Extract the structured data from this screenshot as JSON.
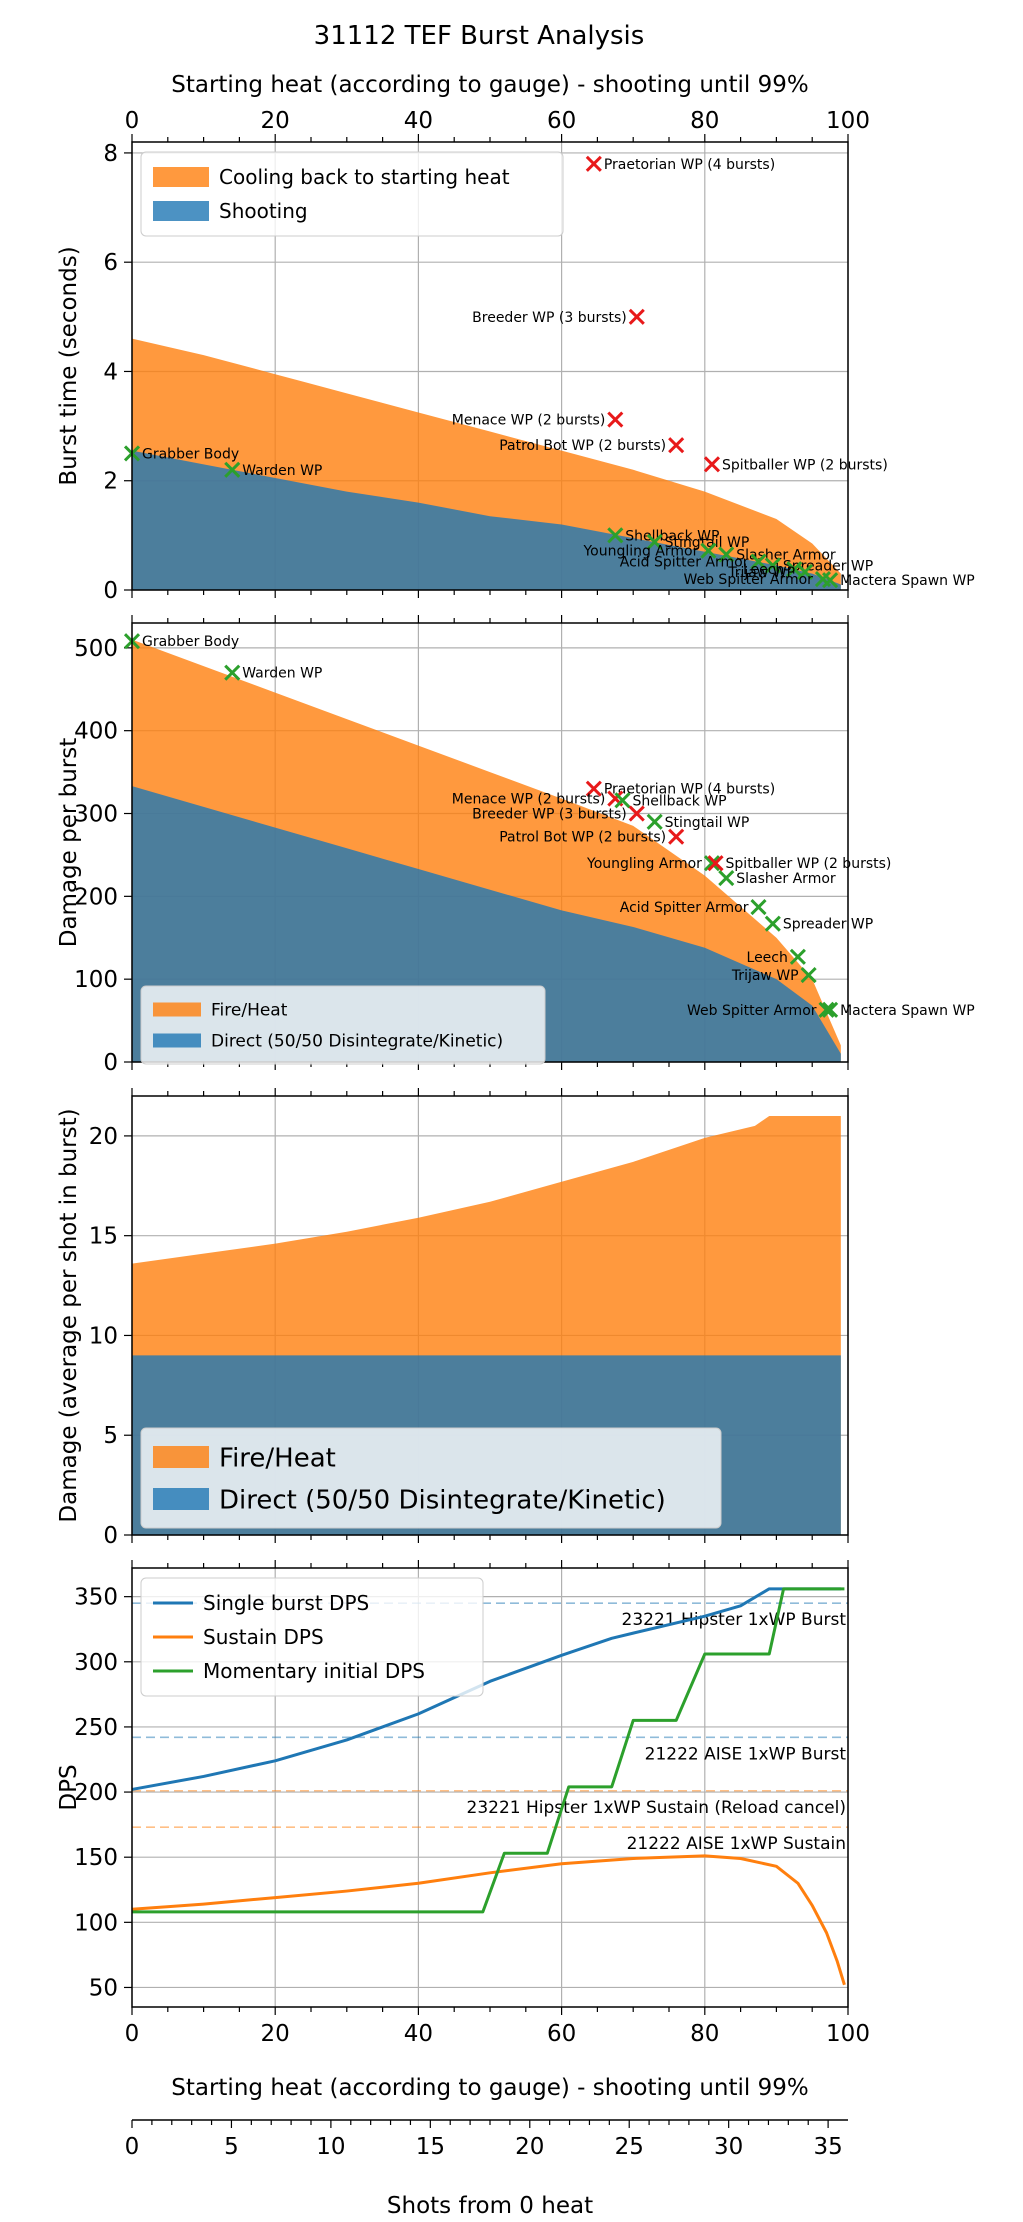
{
  "title": "31112 TEF Burst Analysis",
  "top_axis": {
    "label": "Starting heat (according to gauge) - shooting until 99%",
    "ticks": [
      0,
      20,
      40,
      60,
      80,
      100
    ]
  },
  "bottom_axis": {
    "label": "Starting heat (according to gauge) - shooting until 99%",
    "ticks": [
      0,
      20,
      40,
      60,
      80,
      100
    ]
  },
  "shots_axis": {
    "label": "Shots from 0 heat",
    "ticks": [
      0,
      5,
      10,
      15,
      20,
      25,
      30,
      35
    ],
    "max_shots": 36
  },
  "colors": {
    "orange": "#ff7f0e",
    "blue": "#1f77b4",
    "green": "#2ca02c",
    "red": "#e8191a"
  },
  "chart_data": [
    {
      "type": "area",
      "ylabel": "Burst time (seconds)",
      "xlim": [
        0,
        100
      ],
      "ylim": [
        0,
        8.2
      ],
      "yticks": [
        0,
        2,
        4,
        6,
        8
      ],
      "grid": true,
      "legend_position": "top-left",
      "x": [
        0,
        10,
        20,
        30,
        40,
        50,
        60,
        70,
        80,
        90,
        95,
        99
      ],
      "series": [
        {
          "name": "Cooling back to starting heat",
          "color": "#ff7f0e",
          "values": [
            4.6,
            4.3,
            3.95,
            3.6,
            3.25,
            2.9,
            2.55,
            2.2,
            1.8,
            1.3,
            0.85,
            0.3
          ]
        },
        {
          "name": "Shooting",
          "color": "#1f77b4",
          "values": [
            2.55,
            2.3,
            2.05,
            1.8,
            1.6,
            1.35,
            1.2,
            0.95,
            0.7,
            0.45,
            0.3,
            0.1
          ]
        }
      ],
      "markers": [
        {
          "label": "Praetorian WP (4 bursts)",
          "x": 64.5,
          "y": 7.8,
          "marker": "red",
          "side": "right"
        },
        {
          "label": "Breeder WP (3 bursts)",
          "x": 70.5,
          "y": 5.0,
          "marker": "red",
          "side": "left"
        },
        {
          "label": "Menace WP (2 bursts)",
          "x": 67.5,
          "y": 3.12,
          "marker": "red",
          "side": "left"
        },
        {
          "label": "Patrol Bot WP (2 bursts)",
          "x": 76,
          "y": 2.65,
          "marker": "red",
          "side": "left"
        },
        {
          "label": "Spitballer WP (2 bursts)",
          "x": 81,
          "y": 2.3,
          "marker": "red",
          "side": "right"
        },
        {
          "label": "Grabber Body",
          "x": 0,
          "y": 2.5,
          "marker": "green",
          "side": "right"
        },
        {
          "label": "Warden WP",
          "x": 14,
          "y": 2.2,
          "marker": "green",
          "side": "right"
        },
        {
          "label": "Shellback WP",
          "x": 67.5,
          "y": 1.0,
          "marker": "green",
          "side": "right"
        },
        {
          "label": "Stingtail WP",
          "x": 73,
          "y": 0.88,
          "marker": "green",
          "side": "right"
        },
        {
          "label": "Youngling Armor",
          "x": 80.5,
          "y": 0.72,
          "marker": "green",
          "side": "left"
        },
        {
          "label": "Slasher Armor",
          "x": 83,
          "y": 0.65,
          "marker": "green",
          "side": "right"
        },
        {
          "label": "Acid Spitter Armor",
          "x": 87.5,
          "y": 0.52,
          "marker": "green",
          "side": "left"
        },
        {
          "label": "Spreader WP",
          "x": 89.5,
          "y": 0.45,
          "marker": "green",
          "side": "right"
        },
        {
          "label": "Leech",
          "x": 92.5,
          "y": 0.38,
          "marker": "green",
          "side": "left"
        },
        {
          "label": "Trijaw WP",
          "x": 94,
          "y": 0.33,
          "marker": "green",
          "side": "left"
        },
        {
          "label": "Web Spitter Armor",
          "x": 96.5,
          "y": 0.2,
          "marker": "green",
          "side": "left"
        },
        {
          "label": "Mactera Spawn WP",
          "x": 97.5,
          "y": 0.18,
          "marker": "green",
          "side": "right"
        }
      ]
    },
    {
      "type": "area",
      "ylabel": "Damage per burst",
      "xlim": [
        0,
        100
      ],
      "ylim": [
        0,
        530
      ],
      "yticks": [
        0,
        100,
        200,
        300,
        400,
        500
      ],
      "grid": true,
      "legend_position": "bottom-left",
      "x": [
        0,
        10,
        20,
        30,
        40,
        50,
        60,
        70,
        80,
        90,
        95,
        99
      ],
      "series": [
        {
          "name": "Fire/Heat",
          "color": "#ff7f0e",
          "values": [
            510,
            478,
            446,
            414,
            382,
            350,
            318,
            285,
            225,
            150,
            100,
            20
          ]
        },
        {
          "name": "Direct (50/50 Disintegrate/Kinetic)",
          "color": "#1f77b4",
          "values": [
            333,
            308,
            283,
            258,
            233,
            208,
            183,
            163,
            138,
            100,
            68,
            10
          ]
        }
      ],
      "markers": [
        {
          "label": "Grabber Body",
          "x": 0,
          "y": 508,
          "marker": "green",
          "side": "right"
        },
        {
          "label": "Warden WP",
          "x": 14,
          "y": 470,
          "marker": "green",
          "side": "right"
        },
        {
          "label": "Praetorian WP (4 bursts)",
          "x": 64.5,
          "y": 330,
          "marker": "red",
          "side": "right"
        },
        {
          "label": "Menace WP (2 bursts)",
          "x": 67.5,
          "y": 318,
          "marker": "red",
          "side": "left"
        },
        {
          "label": "Shellback WP",
          "x": 68.5,
          "y": 316,
          "marker": "green",
          "side": "right"
        },
        {
          "label": "Breeder WP (3 bursts)",
          "x": 70.5,
          "y": 300,
          "marker": "red",
          "side": "left"
        },
        {
          "label": "Stingtail WP",
          "x": 73,
          "y": 290,
          "marker": "green",
          "side": "right"
        },
        {
          "label": "Patrol Bot WP (2 bursts)",
          "x": 76,
          "y": 272,
          "marker": "red",
          "side": "left"
        },
        {
          "label": "Youngling Armor",
          "x": 81,
          "y": 240,
          "marker": "green",
          "side": "left"
        },
        {
          "label": "Spitballer WP (2 bursts)",
          "x": 81.5,
          "y": 240,
          "marker": "red",
          "side": "right"
        },
        {
          "label": "Slasher Armor",
          "x": 83,
          "y": 222,
          "marker": "green",
          "side": "right"
        },
        {
          "label": "Acid Spitter Armor",
          "x": 87.5,
          "y": 187,
          "marker": "green",
          "side": "left"
        },
        {
          "label": "Spreader WP",
          "x": 89.5,
          "y": 167,
          "marker": "green",
          "side": "right"
        },
        {
          "label": "Leech",
          "x": 93,
          "y": 127,
          "marker": "green",
          "side": "left"
        },
        {
          "label": "Trijaw WP",
          "x": 94.5,
          "y": 105,
          "marker": "green",
          "side": "left"
        },
        {
          "label": "Web Spitter Armor",
          "x": 97,
          "y": 63,
          "marker": "green",
          "side": "left"
        },
        {
          "label": "Mactera Spawn WP",
          "x": 97.5,
          "y": 63,
          "marker": "green",
          "side": "right"
        }
      ]
    },
    {
      "type": "area",
      "ylabel": "Damage (average per shot in burst)",
      "xlim": [
        0,
        100
      ],
      "ylim": [
        0,
        22
      ],
      "yticks": [
        0,
        5,
        10,
        15,
        20
      ],
      "grid": true,
      "legend_position": "bottom-left",
      "x": [
        0,
        10,
        20,
        30,
        40,
        50,
        60,
        70,
        80,
        87,
        89,
        99
      ],
      "series": [
        {
          "name": "Fire/Heat",
          "color": "#ff7f0e",
          "values": [
            13.6,
            14.1,
            14.6,
            15.2,
            15.9,
            16.7,
            17.7,
            18.7,
            19.9,
            20.5,
            21.0,
            21.0
          ]
        },
        {
          "name": "Direct (50/50 Disintegrate/Kinetic)",
          "color": "#1f77b4",
          "values": [
            9.0,
            9.0,
            9.0,
            9.0,
            9.0,
            9.0,
            9.0,
            9.0,
            9.0,
            9.0,
            9.0,
            9.0
          ]
        }
      ]
    },
    {
      "type": "line",
      "ylabel": "DPS",
      "xlim": [
        0,
        100
      ],
      "ylim": [
        35,
        372
      ],
      "yticks": [
        50,
        100,
        150,
        200,
        250,
        300,
        350
      ],
      "grid": true,
      "legend_position": "top-left",
      "series": [
        {
          "name": "Single burst DPS",
          "color": "#1f77b4",
          "x": [
            0,
            10,
            20,
            30,
            40,
            50,
            60,
            67,
            70,
            80,
            85,
            89,
            91,
            99
          ],
          "y": [
            202,
            212,
            224,
            240,
            260,
            285,
            305,
            318,
            322,
            335,
            343,
            356,
            356,
            356
          ]
        },
        {
          "name": "Sustain DPS",
          "color": "#ff7f0e",
          "x": [
            0,
            10,
            20,
            30,
            40,
            50,
            60,
            70,
            80,
            85,
            90,
            93,
            95,
            97,
            98.5,
            99.5
          ],
          "y": [
            110,
            114,
            119,
            124,
            130,
            138,
            145,
            149,
            151,
            149,
            143,
            130,
            113,
            92,
            70,
            52
          ]
        },
        {
          "name": "Momentary initial DPS",
          "color": "#2ca02c",
          "x": [
            0,
            49,
            52,
            58,
            61,
            67,
            70,
            76,
            80,
            89,
            91,
            99.5
          ],
          "y": [
            108,
            108,
            153,
            153,
            204,
            204,
            255,
            255,
            306,
            306,
            356,
            356
          ]
        }
      ],
      "reference_lines": [
        {
          "label": "23221 Hipster 1xWP Burst",
          "y": 345,
          "color": "#1f77b4"
        },
        {
          "label": "21222 AISE 1xWP Burst",
          "y": 242,
          "color": "#1f77b4"
        },
        {
          "label": "23221 Hipster 1xWP Sustain (Reload cancel)",
          "y": 201,
          "color": "#ff7f0e"
        },
        {
          "label": "21222 AISE 1xWP Sustain",
          "y": 173,
          "color": "#ff7f0e"
        }
      ]
    }
  ]
}
